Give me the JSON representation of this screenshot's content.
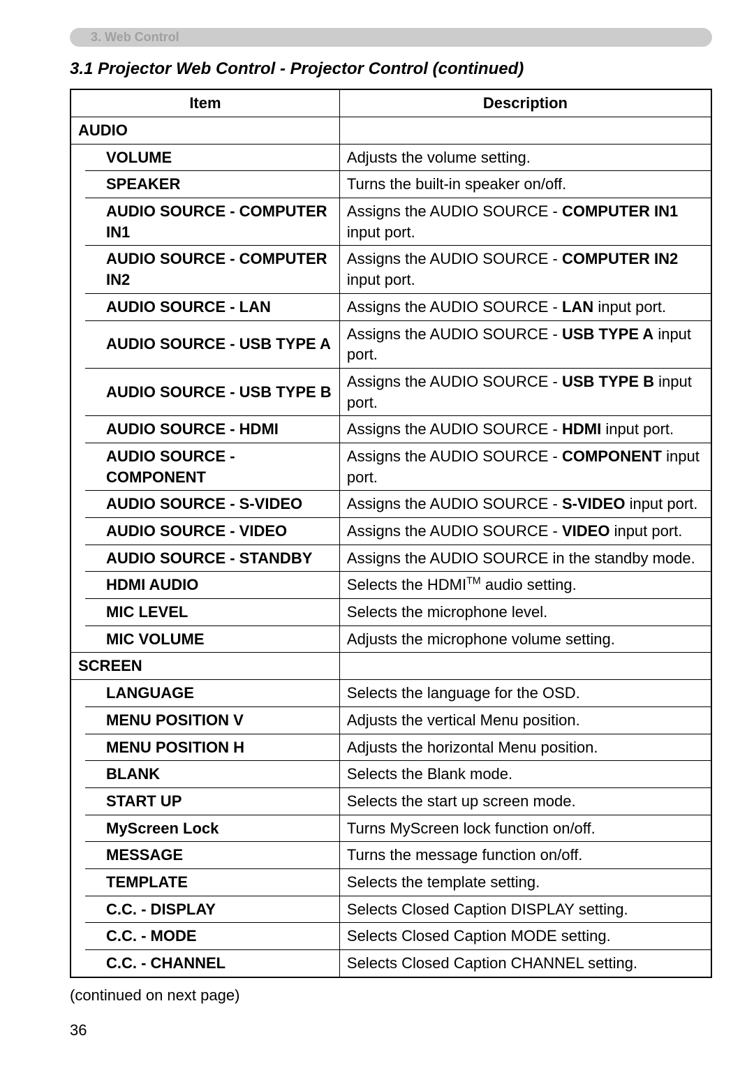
{
  "sectionTab": "3. Web Control",
  "pageHeading": "3.1 Projector Web Control - Projector Control (continued)",
  "headers": {
    "item": "Item",
    "description": "Description"
  },
  "audio": {
    "label": "AUDIO",
    "volume": {
      "item": "VOLUME",
      "desc": "Adjusts the volume setting."
    },
    "speaker": {
      "item": "SPEAKER",
      "desc": "Turns the built-in speaker on/off."
    },
    "srcCompIn1": {
      "item": "AUDIO SOURCE - COMPUTER IN1",
      "descPrefix": "Assigns the AUDIO SOURCE - ",
      "descBold": "COMPUTER IN1",
      "descSuffix": " input port."
    },
    "srcCompIn2": {
      "item": "AUDIO SOURCE - COMPUTER IN2",
      "descPrefix": "Assigns the AUDIO SOURCE - ",
      "descBold": "COMPUTER IN2",
      "descSuffix": " input port."
    },
    "srcLan": {
      "item": "AUDIO SOURCE - LAN",
      "descPrefix": "Assigns the AUDIO SOURCE - ",
      "descBold": "LAN",
      "descSuffix": " input port."
    },
    "srcUsbA": {
      "item": "AUDIO SOURCE - USB TYPE A",
      "descPrefix": "Assigns the AUDIO SOURCE - ",
      "descBold": "USB TYPE A",
      "descSuffix": " input port."
    },
    "srcUsbB": {
      "item": "AUDIO SOURCE - USB TYPE B",
      "descPrefix": "Assigns the AUDIO SOURCE - ",
      "descBold": "USB TYPE B",
      "descSuffix": " input port."
    },
    "srcHdmi": {
      "item": "AUDIO SOURCE - HDMI",
      "descPrefix": "Assigns the AUDIO SOURCE - ",
      "descBold": "HDMI",
      "descSuffix": " input port."
    },
    "srcComponent": {
      "item": "AUDIO SOURCE - COMPONENT",
      "descPrefix": "Assigns the AUDIO SOURCE - ",
      "descBold": "COMPONENT",
      "descSuffix": " input port."
    },
    "srcSvideo": {
      "item": "AUDIO SOURCE - S-VIDEO",
      "descPrefix": "Assigns the AUDIO SOURCE - ",
      "descBold": "S-VIDEO",
      "descSuffix": " input port."
    },
    "srcVideo": {
      "item": "AUDIO SOURCE - VIDEO",
      "descPrefix": "Assigns the AUDIO SOURCE - ",
      "descBold": "VIDEO",
      "descSuffix": " input port."
    },
    "srcStandby": {
      "item": "AUDIO SOURCE - STANDBY",
      "desc": "Assigns the AUDIO SOURCE in the standby mode."
    },
    "hdmiAudio": {
      "item": "HDMI AUDIO",
      "descPrefix": "Selects the HDMI",
      "descSup": "TM",
      "descSuffix": " audio setting."
    },
    "micLevel": {
      "item": "MIC LEVEL",
      "desc": "Selects the microphone level."
    },
    "micVolume": {
      "item": "MIC VOLUME",
      "desc": "Adjusts the microphone volume setting."
    }
  },
  "screen": {
    "label": "SCREEN",
    "language": {
      "item": "LANGUAGE",
      "desc": "Selects the language for the OSD."
    },
    "menuPosV": {
      "item": "MENU POSITION V",
      "desc": "Adjusts the vertical Menu position."
    },
    "menuPosH": {
      "item": "MENU POSITION H",
      "desc": "Adjusts the horizontal Menu position."
    },
    "blank": {
      "item": "BLANK",
      "desc": "Selects the Blank mode."
    },
    "startUp": {
      "item": "START UP",
      "desc": "Selects the start up screen mode."
    },
    "myScreen": {
      "item": "MyScreen Lock",
      "desc": "Turns MyScreen lock function on/off."
    },
    "message": {
      "item": "MESSAGE",
      "desc": "Turns the message function on/off."
    },
    "template": {
      "item": "TEMPLATE",
      "desc": "Selects the template setting."
    },
    "ccDisplay": {
      "item": "C.C. - DISPLAY",
      "desc": "Selects Closed Caption DISPLAY setting."
    },
    "ccMode": {
      "item": "C.C. - MODE",
      "desc": "Selects Closed Caption MODE setting."
    },
    "ccChannel": {
      "item": "C.C. - CHANNEL",
      "desc": "Selects Closed Caption CHANNEL setting."
    }
  },
  "footerNote": "(continued on next page)",
  "pageNumber": "36"
}
